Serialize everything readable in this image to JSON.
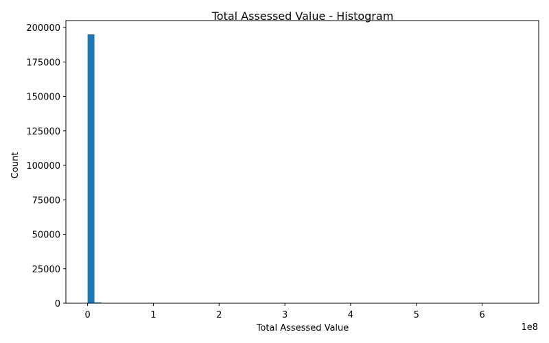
{
  "chart_data": {
    "type": "bar",
    "title": "Total Assessed Value - Histogram",
    "xlabel": "Total Assessed Value",
    "ylabel": "Count",
    "x_offset_label": "1e8",
    "xlim": [
      -0.33,
      6.86
    ],
    "ylim": [
      0,
      205000
    ],
    "x_ticks": [
      {
        "value": 0,
        "label": "0"
      },
      {
        "value": 1,
        "label": "1"
      },
      {
        "value": 2,
        "label": "2"
      },
      {
        "value": 3,
        "label": "3"
      },
      {
        "value": 4,
        "label": "4"
      },
      {
        "value": 5,
        "label": "5"
      },
      {
        "value": 6,
        "label": "6"
      }
    ],
    "y_ticks": [
      {
        "value": 0,
        "label": "0"
      },
      {
        "value": 25000,
        "label": "25000"
      },
      {
        "value": 50000,
        "label": "50000"
      },
      {
        "value": 75000,
        "label": "75000"
      },
      {
        "value": 100000,
        "label": "100000"
      },
      {
        "value": 125000,
        "label": "125000"
      },
      {
        "value": 150000,
        "label": "150000"
      },
      {
        "value": 175000,
        "label": "175000"
      },
      {
        "value": 200000,
        "label": "200000"
      }
    ],
    "bins": [
      {
        "start": 0.0,
        "end": 0.104,
        "count": 195000
      },
      {
        "start": 0.104,
        "end": 0.208,
        "count": 600
      },
      {
        "start": 0.208,
        "end": 0.312,
        "count": 250
      }
    ],
    "bar_color": "#1f77b4",
    "grid": false
  }
}
